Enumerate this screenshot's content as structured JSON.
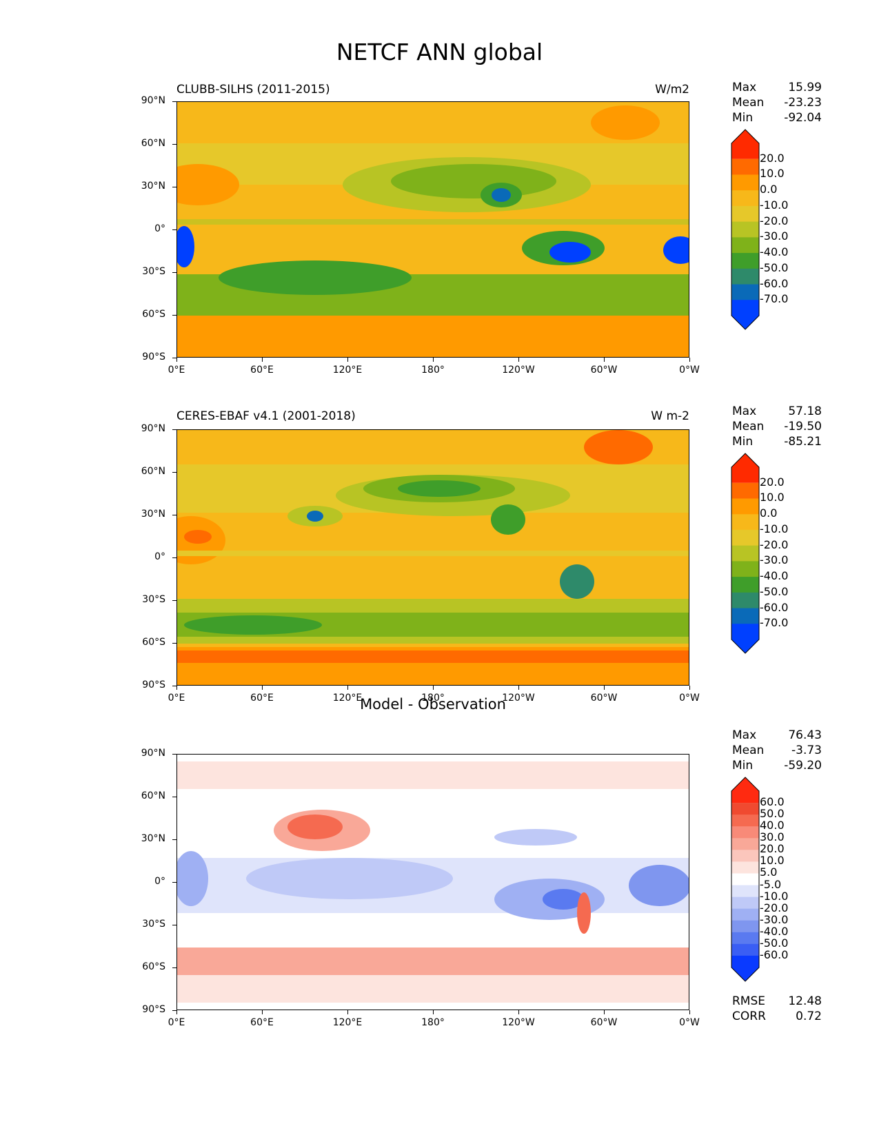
{
  "figure": {
    "title": "NETCF ANN global"
  },
  "axes": {
    "y_ticks": [
      "90°N",
      "60°N",
      "30°N",
      "0°",
      "30°S",
      "60°S",
      "90°S"
    ],
    "x_ticks": [
      "0°E",
      "60°E",
      "120°E",
      "180°",
      "120°W",
      "60°W",
      "0°W"
    ]
  },
  "panels": [
    {
      "title_left": "CLUBB-SILHS (2011-2015)",
      "title_right": "W/m2",
      "title_center": "",
      "stats": [
        {
          "label": "Max",
          "value": "15.99"
        },
        {
          "label": "Mean",
          "value": "-23.23"
        },
        {
          "label": "Min",
          "value": "-92.04"
        }
      ],
      "colorbar": {
        "labels": [
          "20.0",
          "10.0",
          "0.0",
          "-10.0",
          "-20.0",
          "-30.0",
          "-40.0",
          "-50.0",
          "-60.0",
          "-70.0"
        ],
        "colors": [
          "#ff2a00",
          "#ff6a00",
          "#ff9a00",
          "#f7b81a",
          "#e6c82a",
          "#b8c424",
          "#7fb21a",
          "#3f9e2a",
          "#2e8a6a",
          "#0a6ab8",
          "#0040ff"
        ]
      }
    },
    {
      "title_left": "CERES-EBAF v4.1 (2001-2018)",
      "title_right": "W m-2",
      "title_center": "",
      "stats": [
        {
          "label": "Max",
          "value": "57.18"
        },
        {
          "label": "Mean",
          "value": "-19.50"
        },
        {
          "label": "Min",
          "value": "-85.21"
        }
      ],
      "colorbar": {
        "labels": [
          "20.0",
          "10.0",
          "0.0",
          "-10.0",
          "-20.0",
          "-30.0",
          "-40.0",
          "-50.0",
          "-60.0",
          "-70.0"
        ],
        "colors": [
          "#ff2a00",
          "#ff6a00",
          "#ff9a00",
          "#f7b81a",
          "#e6c82a",
          "#b8c424",
          "#7fb21a",
          "#3f9e2a",
          "#2e8a6a",
          "#0a6ab8",
          "#0040ff"
        ]
      }
    },
    {
      "title_left": "",
      "title_right": "",
      "title_center": "Model - Observation",
      "stats": [
        {
          "label": "Max",
          "value": "76.43"
        },
        {
          "label": "Mean",
          "value": "-3.73"
        },
        {
          "label": "Min",
          "value": "-59.20"
        }
      ],
      "colorbar": {
        "labels": [
          "60.0",
          "50.0",
          "40.0",
          "30.0",
          "20.0",
          "10.0",
          "5.0",
          "-5.0",
          "-10.0",
          "-20.0",
          "-30.0",
          "-40.0",
          "-50.0",
          "-60.0"
        ],
        "colors": [
          "#ff2a10",
          "#f04a30",
          "#f56a50",
          "#f88a78",
          "#f9a898",
          "#fbc6bc",
          "#fde4de",
          "#ffffff",
          "#dfe4fb",
          "#bfc9f7",
          "#9fb0f3",
          "#7f96ef",
          "#5a7af0",
          "#3a5ef4",
          "#0a3aff"
        ]
      },
      "rmse": [
        {
          "label": "RMSE",
          "value": "12.48"
        },
        {
          "label": "CORR",
          "value": "0.72"
        }
      ]
    }
  ],
  "chart_data": [
    {
      "type": "heatmap",
      "title": "CLUBB-SILHS (2011-2015)",
      "units": "W/m2",
      "xlabel": "",
      "ylabel": "",
      "xlim": [
        0,
        360
      ],
      "ylim": [
        -90,
        90
      ],
      "levels": [
        -70,
        -60,
        -50,
        -40,
        -30,
        -20,
        -10,
        0,
        10,
        20
      ],
      "stats": {
        "max": 15.99,
        "mean": -23.23,
        "min": -92.04
      }
    },
    {
      "type": "heatmap",
      "title": "CERES-EBAF v4.1 (2001-2018)",
      "units": "W m-2",
      "xlabel": "",
      "ylabel": "",
      "xlim": [
        0,
        360
      ],
      "ylim": [
        -90,
        90
      ],
      "levels": [
        -70,
        -60,
        -50,
        -40,
        -30,
        -20,
        -10,
        0,
        10,
        20
      ],
      "stats": {
        "max": 57.18,
        "mean": -19.5,
        "min": -85.21
      }
    },
    {
      "type": "heatmap",
      "title": "Model - Observation",
      "xlabel": "",
      "ylabel": "",
      "xlim": [
        0,
        360
      ],
      "ylim": [
        -90,
        90
      ],
      "levels": [
        -60,
        -50,
        -40,
        -30,
        -20,
        -10,
        -5,
        5,
        10,
        20,
        30,
        40,
        50,
        60
      ],
      "stats": {
        "max": 76.43,
        "mean": -3.73,
        "min": -59.2,
        "rmse": 12.48,
        "corr": 0.72
      }
    }
  ]
}
